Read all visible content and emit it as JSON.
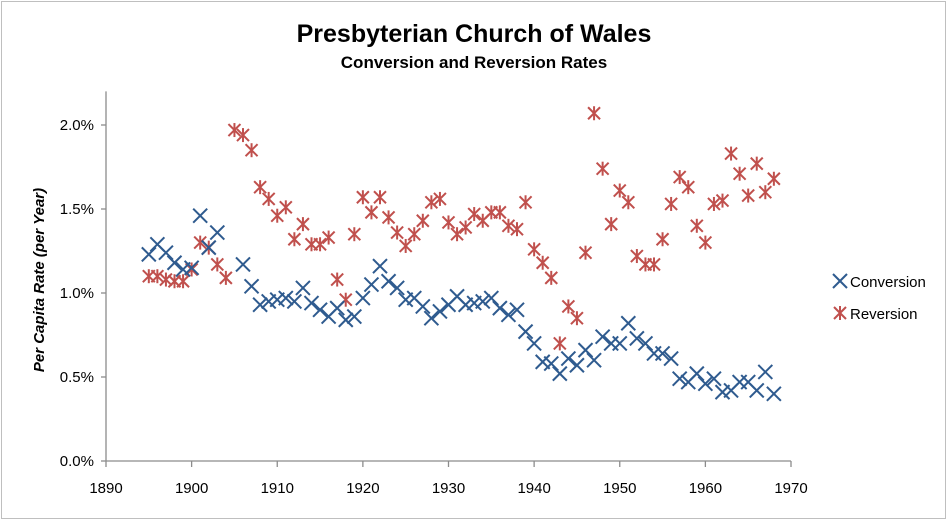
{
  "chart_data": {
    "type": "scatter",
    "title": "Presbyterian Church of Wales",
    "subtitle": "Conversion and Reversion Rates",
    "xlabel": "",
    "ylabel": "Per Capita Rate (per Year)",
    "xlim": [
      1890,
      1970
    ],
    "ylim": [
      0,
      2.2
    ],
    "x_ticks": [
      "1890",
      "1900",
      "1910",
      "1920",
      "1930",
      "1940",
      "1950",
      "1960",
      "1970"
    ],
    "y_ticks": [
      "0.0%",
      "0.5%",
      "1.0%",
      "1.5%",
      "2.0%"
    ],
    "y_tick_values": [
      0,
      0.5,
      1.0,
      1.5,
      2.0
    ],
    "x_tick_values": [
      1890,
      1900,
      1910,
      1920,
      1930,
      1940,
      1950,
      1960,
      1970
    ],
    "grid": false,
    "legend": "right",
    "series": [
      {
        "name": "Conversion",
        "color": "#2f5b8f",
        "marker": "x",
        "points": [
          [
            1895,
            1.23
          ],
          [
            1896,
            1.29
          ],
          [
            1897,
            1.24
          ],
          [
            1898,
            1.18
          ],
          [
            1899,
            1.14
          ],
          [
            1900,
            1.15
          ],
          [
            1901,
            1.46
          ],
          [
            1902,
            1.27
          ],
          [
            1903,
            1.36
          ],
          [
            1906,
            1.17
          ],
          [
            1907,
            1.04
          ],
          [
            1908,
            0.93
          ],
          [
            1909,
            0.95
          ],
          [
            1910,
            0.96
          ],
          [
            1911,
            0.97
          ],
          [
            1912,
            0.95
          ],
          [
            1913,
            1.03
          ],
          [
            1914,
            0.94
          ],
          [
            1915,
            0.9
          ],
          [
            1916,
            0.86
          ],
          [
            1917,
            0.91
          ],
          [
            1918,
            0.84
          ],
          [
            1919,
            0.86
          ],
          [
            1920,
            0.97
          ],
          [
            1921,
            1.05
          ],
          [
            1922,
            1.16
          ],
          [
            1923,
            1.07
          ],
          [
            1924,
            1.03
          ],
          [
            1925,
            0.96
          ],
          [
            1926,
            0.97
          ],
          [
            1927,
            0.92
          ],
          [
            1928,
            0.85
          ],
          [
            1929,
            0.89
          ],
          [
            1930,
            0.93
          ],
          [
            1931,
            0.98
          ],
          [
            1932,
            0.93
          ],
          [
            1933,
            0.94
          ],
          [
            1934,
            0.95
          ],
          [
            1935,
            0.97
          ],
          [
            1936,
            0.91
          ],
          [
            1937,
            0.87
          ],
          [
            1938,
            0.9
          ],
          [
            1939,
            0.77
          ],
          [
            1940,
            0.7
          ],
          [
            1941,
            0.59
          ],
          [
            1942,
            0.58
          ],
          [
            1943,
            0.52
          ],
          [
            1944,
            0.61
          ],
          [
            1945,
            0.57
          ],
          [
            1946,
            0.66
          ],
          [
            1947,
            0.6
          ],
          [
            1948,
            0.74
          ],
          [
            1949,
            0.7
          ],
          [
            1950,
            0.7
          ],
          [
            1951,
            0.82
          ],
          [
            1952,
            0.73
          ],
          [
            1953,
            0.7
          ],
          [
            1954,
            0.64
          ],
          [
            1955,
            0.64
          ],
          [
            1956,
            0.61
          ],
          [
            1957,
            0.49
          ],
          [
            1958,
            0.47
          ],
          [
            1959,
            0.52
          ],
          [
            1960,
            0.46
          ],
          [
            1961,
            0.49
          ],
          [
            1962,
            0.41
          ],
          [
            1963,
            0.42
          ],
          [
            1964,
            0.47
          ],
          [
            1965,
            0.47
          ],
          [
            1966,
            0.42
          ],
          [
            1967,
            0.53
          ],
          [
            1968,
            0.4
          ]
        ]
      },
      {
        "name": "Reversion",
        "color": "#c0504d",
        "marker": "asterisk",
        "points": [
          [
            1895,
            1.1
          ],
          [
            1896,
            1.1
          ],
          [
            1897,
            1.08
          ],
          [
            1898,
            1.07
          ],
          [
            1899,
            1.07
          ],
          [
            1900,
            1.14
          ],
          [
            1901,
            1.3
          ],
          [
            1902,
            1.27
          ],
          [
            1903,
            1.17
          ],
          [
            1904,
            1.09
          ],
          [
            1905,
            1.97
          ],
          [
            1906,
            1.94
          ],
          [
            1907,
            1.85
          ],
          [
            1908,
            1.63
          ],
          [
            1909,
            1.56
          ],
          [
            1910,
            1.46
          ],
          [
            1911,
            1.51
          ],
          [
            1912,
            1.32
          ],
          [
            1913,
            1.41
          ],
          [
            1914,
            1.29
          ],
          [
            1915,
            1.29
          ],
          [
            1916,
            1.33
          ],
          [
            1917,
            1.08
          ],
          [
            1918,
            0.96
          ],
          [
            1919,
            1.35
          ],
          [
            1920,
            1.57
          ],
          [
            1921,
            1.48
          ],
          [
            1922,
            1.57
          ],
          [
            1923,
            1.45
          ],
          [
            1924,
            1.36
          ],
          [
            1925,
            1.28
          ],
          [
            1926,
            1.35
          ],
          [
            1927,
            1.43
          ],
          [
            1928,
            1.54
          ],
          [
            1929,
            1.56
          ],
          [
            1930,
            1.42
          ],
          [
            1931,
            1.35
          ],
          [
            1932,
            1.39
          ],
          [
            1933,
            1.47
          ],
          [
            1934,
            1.43
          ],
          [
            1935,
            1.48
          ],
          [
            1936,
            1.48
          ],
          [
            1937,
            1.4
          ],
          [
            1938,
            1.38
          ],
          [
            1939,
            1.54
          ],
          [
            1940,
            1.26
          ],
          [
            1941,
            1.18
          ],
          [
            1942,
            1.09
          ],
          [
            1943,
            0.7
          ],
          [
            1944,
            0.92
          ],
          [
            1945,
            0.85
          ],
          [
            1946,
            1.24
          ],
          [
            1947,
            2.07
          ],
          [
            1948,
            1.74
          ],
          [
            1949,
            1.41
          ],
          [
            1950,
            1.61
          ],
          [
            1951,
            1.54
          ],
          [
            1952,
            1.22
          ],
          [
            1953,
            1.17
          ],
          [
            1954,
            1.17
          ],
          [
            1955,
            1.32
          ],
          [
            1956,
            1.53
          ],
          [
            1957,
            1.69
          ],
          [
            1958,
            1.63
          ],
          [
            1959,
            1.4
          ],
          [
            1960,
            1.3
          ],
          [
            1961,
            1.53
          ],
          [
            1962,
            1.55
          ],
          [
            1963,
            1.83
          ],
          [
            1964,
            1.71
          ],
          [
            1965,
            1.58
          ],
          [
            1966,
            1.77
          ],
          [
            1967,
            1.6
          ],
          [
            1968,
            1.68
          ]
        ]
      }
    ]
  }
}
